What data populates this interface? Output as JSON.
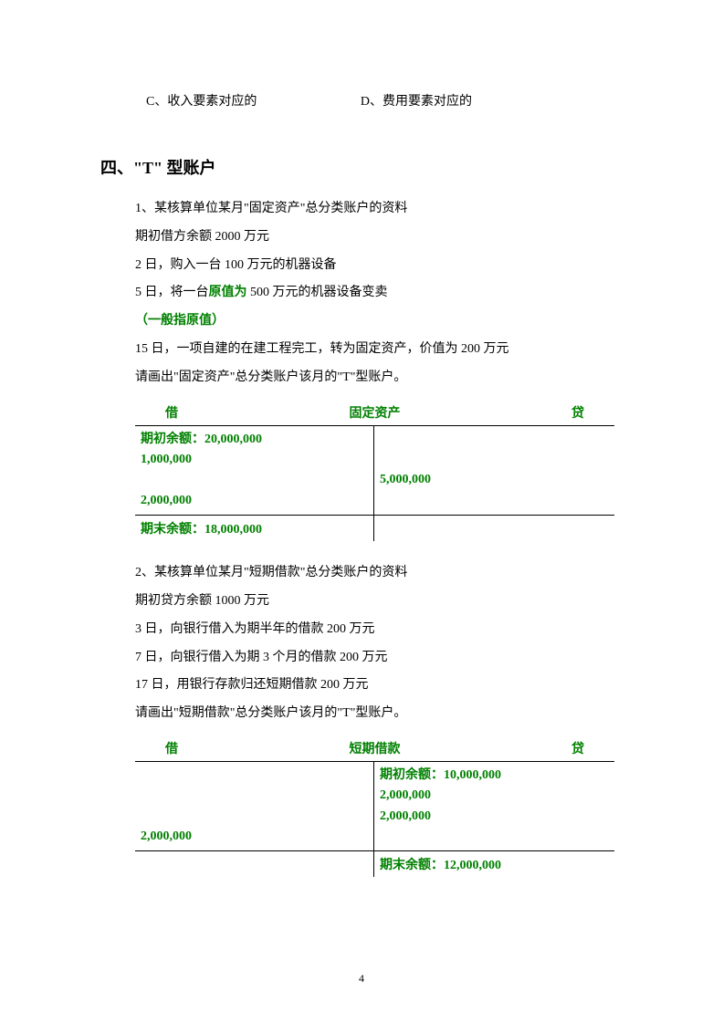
{
  "options": {
    "c": "C、收入要素对应的",
    "d": "D、费用要素对应的"
  },
  "section4": {
    "heading": "四、\"T\" 型账户",
    "problem1": {
      "line1": "1、某核算单位某月\"固定资产\"总分类账户的资料",
      "line2": "期初借方余额 2000 万元",
      "line3_pre": "2 日，购入一台 100 万元的机器设备",
      "line4_pre": "5 日，将一台",
      "line4_green": "原值为",
      "line4_post": " 500 万元的机器设备变卖",
      "line5": "（一般指原值）",
      "line6": "15 日，一项自建的在建工程完工，转为固定资产，价值为 200 万元",
      "line7": "请画出\"固定资产\"总分类账户该月的\"T\"型账户。"
    },
    "taccount1": {
      "header_left": "借",
      "header_center": "固定资产",
      "header_right": "贷",
      "debit_opening_label": "期初余额：",
      "debit_opening_value": "20,000,000",
      "debit_line1": "1,000,000",
      "debit_line2": "2,000,000",
      "credit_line1": "5,000,000",
      "closing_label": "期末余额：",
      "closing_value": "18,000,000"
    },
    "problem2": {
      "line1": "2、某核算单位某月\"短期借款\"总分类账户的资料",
      "line2": "期初贷方余额 1000 万元",
      "line3": "3 日，向银行借入为期半年的借款 200 万元",
      "line4": "7 日，向银行借入为期 3 个月的借款 200 万元",
      "line5": "17 日，用银行存款归还短期借款 200 万元",
      "line6": "请画出\"短期借款\"总分类账户该月的\"T\"型账户。"
    },
    "taccount2": {
      "header_left": "借",
      "header_center": "短期借款",
      "header_right": "贷",
      "credit_opening_label": "期初余额：",
      "credit_opening_value": "10,000,000",
      "credit_line1": "2,000,000",
      "credit_line2": "2,000,000",
      "debit_line1": "2,000,000",
      "closing_label": "期末余额：",
      "closing_value": "12,000,000"
    }
  },
  "page_number": "4",
  "colors": {
    "green": "#008000",
    "text": "#000000",
    "background": "#ffffff"
  }
}
